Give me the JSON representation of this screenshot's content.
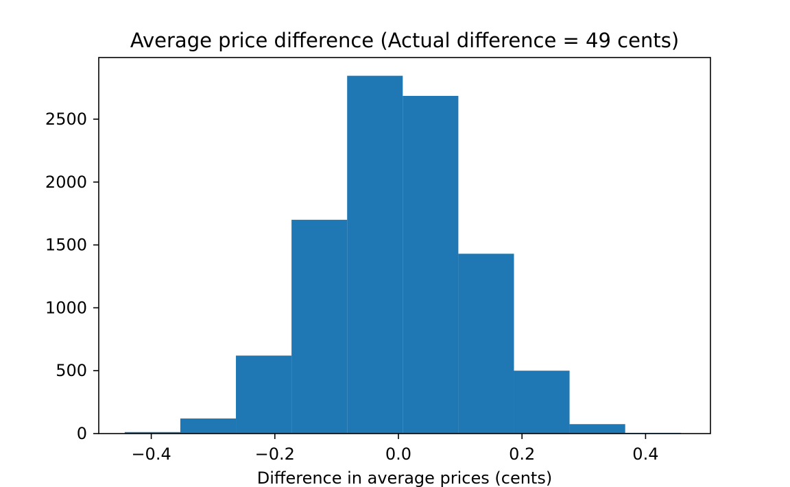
{
  "chart_data": {
    "type": "bar",
    "title": "Average price difference (Actual difference = 49 cents)",
    "xlabel": "Difference in average prices (cents)",
    "ylabel": "",
    "bar_color": "#1f77b4",
    "grid": false,
    "legend": "none",
    "xlim": [
      -0.485,
      0.505
    ],
    "ylim": [
      0,
      2990
    ],
    "bin_edges": [
      -0.443,
      -0.353,
      -0.263,
      -0.173,
      -0.083,
      0.007,
      0.097,
      0.187,
      0.277,
      0.367,
      0.457
    ],
    "values": [
      12,
      120,
      620,
      1700,
      2845,
      2685,
      1430,
      500,
      75,
      6
    ],
    "x_ticks": [
      {
        "value": -0.4,
        "label": "−0.4"
      },
      {
        "value": -0.2,
        "label": "−0.2"
      },
      {
        "value": 0.0,
        "label": "0.0"
      },
      {
        "value": 0.2,
        "label": "0.2"
      },
      {
        "value": 0.4,
        "label": "0.4"
      }
    ],
    "y_ticks": [
      {
        "value": 0,
        "label": "0"
      },
      {
        "value": 500,
        "label": "500"
      },
      {
        "value": 1000,
        "label": "1000"
      },
      {
        "value": 1500,
        "label": "1500"
      },
      {
        "value": 2000,
        "label": "2000"
      },
      {
        "value": 2500,
        "label": "2500"
      }
    ]
  }
}
